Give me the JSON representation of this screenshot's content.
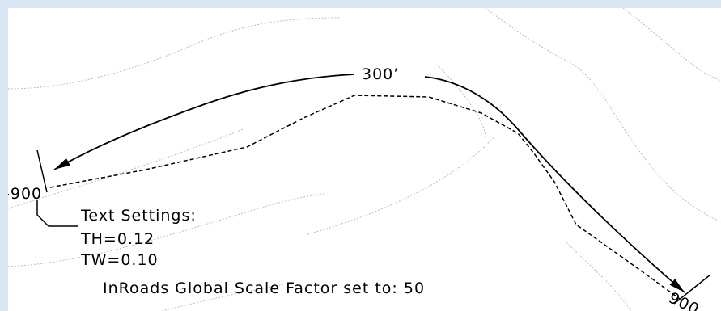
{
  "drawing": {
    "label_top": "300’",
    "station_left": "-900",
    "station_right": "900",
    "text_settings_title": "Text Settings:",
    "text_height": "TH=0.12",
    "text_width": "TW=0.10",
    "scale_note": "InRoads Global Scale Factor set to: 50"
  },
  "colors": {
    "frame": "#dbe6f4",
    "contour": "#bdbdbd",
    "ink": "#000000"
  }
}
